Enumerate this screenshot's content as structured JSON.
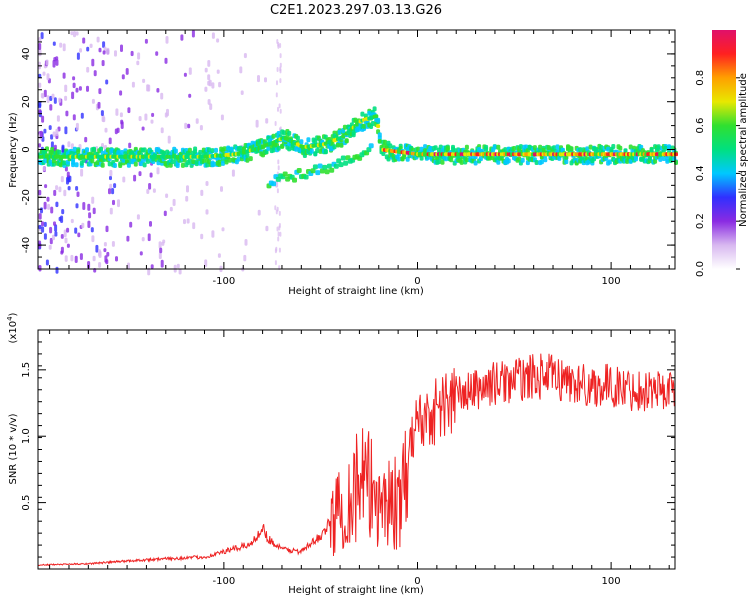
{
  "figure_title": "C2E1.2023.297.03.13.G26",
  "chart_data": [
    {
      "type": "heatmap",
      "title": "",
      "xlabel": "Height of straight line (km)",
      "ylabel": "Frequency (Hz)",
      "xlim": [
        -196,
        133
      ],
      "ylim": [
        -50,
        50
      ],
      "xticks": [
        -100,
        0,
        100
      ],
      "xtick_labels": [
        "-100",
        "0",
        "100"
      ],
      "yticks": [
        -40,
        -20,
        0,
        20,
        40
      ],
      "ytick_labels": [
        "-40",
        "-20",
        "0",
        "20",
        "40"
      ],
      "grid": false,
      "colorbar": {
        "label": "Normalized spectral amplitude",
        "range": [
          0,
          1
        ],
        "ticks": [
          0,
          0.2,
          0.4,
          0.6,
          0.8
        ],
        "tick_labels": [
          "0.0",
          "0.2",
          "0.4",
          "0.6",
          "0.8"
        ],
        "colors": [
          "#ffffff",
          "#d8b8f0",
          "#8a2be2",
          "#3030ff",
          "#00c8ff",
          "#00e080",
          "#30e030",
          "#e8e800",
          "#ffa000",
          "#ff2020",
          "#e0106a"
        ]
      },
      "ridge": {
        "x": [
          -196,
          -150,
          -110,
          -95,
          -85,
          -75,
          -70,
          -60,
          -50,
          -40,
          -30,
          -22,
          -20,
          0,
          50,
          100,
          133
        ],
        "y": [
          -3,
          -3,
          -3,
          -2,
          0,
          3,
          5,
          1,
          2,
          5,
          12,
          14,
          0,
          -2,
          -2,
          -2,
          -2
        ]
      },
      "secondary_ridge": {
        "x": [
          -78,
          -70,
          -60,
          -50,
          -40,
          -30,
          -25
        ],
        "y": [
          -14,
          -12,
          -10,
          -8,
          -5,
          -2,
          0
        ]
      }
    },
    {
      "type": "line",
      "title": "",
      "xlabel": "Height of straight line (km)",
      "ylabel": "SNR (10 * v/v)",
      "yscale_label": "(x10",
      "yscale_exponent": "4",
      "xlim": [
        -196,
        133
      ],
      "ylim": [
        0,
        18000
      ],
      "xticks": [
        -100,
        0,
        100
      ],
      "xtick_labels": [
        "-100",
        "0",
        "100"
      ],
      "yticks": [
        5000,
        10000,
        15000
      ],
      "ytick_labels": [
        "0.5",
        "1.0",
        "1.5"
      ],
      "grid": false,
      "color": "#ee2222",
      "series": [
        {
          "x": [
            -196,
            -170,
            -150,
            -140,
            -125,
            -110,
            -100,
            -90,
            -85,
            -80,
            -78,
            -75,
            -70,
            -60,
            -50,
            -45,
            -40,
            -35,
            -30,
            -25,
            -20,
            -15,
            -10,
            -7,
            -5,
            -3,
            0,
            5,
            10,
            15,
            20,
            30,
            40,
            50,
            60,
            70,
            80,
            90,
            100,
            110,
            120,
            133
          ],
          "values": [
            300,
            400,
            600,
            700,
            800,
            900,
            1300,
            1700,
            2000,
            3200,
            2500,
            2000,
            1500,
            1300,
            2500,
            3500,
            4500,
            5500,
            6500,
            6000,
            5500,
            5000,
            5000,
            5500,
            7000,
            10500,
            11000,
            11500,
            12000,
            12500,
            13000,
            13500,
            14000,
            14200,
            14500,
            14500,
            14000,
            13800,
            13800,
            13500,
            13500,
            13500
          ]
        }
      ]
    }
  ]
}
